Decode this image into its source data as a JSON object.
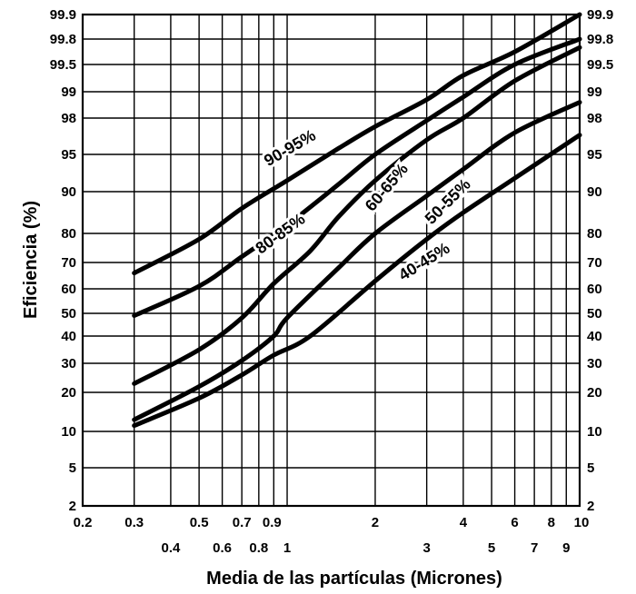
{
  "chart_data": {
    "type": "line",
    "xlabel": "Media de las partículas (Micrones)",
    "ylabel": "Eficiencia (%)",
    "xscale": "log",
    "xlim": [
      0.2,
      10
    ],
    "yscale": "probability",
    "ylim": [
      2,
      99.9
    ],
    "grid": true,
    "x_ticks_upper": [
      "0.2",
      "0.3",
      "0.5",
      "0.7",
      "0.9",
      "2",
      "4",
      "6",
      "8",
      "10"
    ],
    "x_ticks_lower": [
      "0.4",
      "0.6",
      "0.8",
      "1",
      "3",
      "5",
      "7",
      "9"
    ],
    "y_ticks": [
      "2",
      "5",
      "10",
      "20",
      "30",
      "40",
      "50",
      "60",
      "70",
      "80",
      "90",
      "95",
      "98",
      "99",
      "99.5",
      "99.8",
      "99.9"
    ],
    "series": [
      {
        "name": "90-95%",
        "color": "#000000",
        "points": [
          [
            0.3,
            66
          ],
          [
            0.5,
            78
          ],
          [
            0.7,
            86
          ],
          [
            1,
            91.5
          ],
          [
            1.5,
            95.5
          ],
          [
            2,
            97.3
          ],
          [
            3,
            98.7
          ],
          [
            4,
            99.3
          ],
          [
            6,
            99.65
          ],
          [
            10,
            99.9
          ]
        ]
      },
      {
        "name": "80-85%",
        "color": "#000000",
        "points": [
          [
            0.3,
            49
          ],
          [
            0.5,
            61
          ],
          [
            0.7,
            72
          ],
          [
            1,
            82
          ],
          [
            1.5,
            91
          ],
          [
            2,
            95
          ],
          [
            3,
            97.8
          ],
          [
            4,
            98.8
          ],
          [
            6,
            99.5
          ],
          [
            10,
            99.8
          ]
        ]
      },
      {
        "name": "60-65%",
        "color": "#000000",
        "points": [
          [
            0.3,
            23
          ],
          [
            0.5,
            35
          ],
          [
            0.7,
            48
          ],
          [
            0.9,
            62
          ],
          [
            1.2,
            74
          ],
          [
            1.5,
            84
          ],
          [
            2,
            91.5
          ],
          [
            3,
            96.2
          ],
          [
            4,
            98
          ],
          [
            6,
            99.2
          ],
          [
            10,
            99.7
          ]
        ]
      },
      {
        "name": "50-55%",
        "color": "#000000",
        "points": [
          [
            0.3,
            13
          ],
          [
            0.5,
            22
          ],
          [
            0.7,
            31
          ],
          [
            0.9,
            40
          ],
          [
            1,
            48
          ],
          [
            1.5,
            68
          ],
          [
            2,
            80
          ],
          [
            3,
            89
          ],
          [
            4,
            93
          ],
          [
            6,
            96.8
          ],
          [
            10,
            98.6
          ]
        ]
      },
      {
        "name": "40-45%",
        "color": "#000000",
        "points": [
          [
            0.3,
            11.5
          ],
          [
            0.5,
            18.5
          ],
          [
            0.7,
            26
          ],
          [
            0.9,
            33
          ],
          [
            1.2,
            40
          ],
          [
            2,
            63
          ],
          [
            3,
            78
          ],
          [
            4,
            85
          ],
          [
            6,
            91.8
          ],
          [
            10,
            96.6
          ]
        ]
      }
    ]
  }
}
